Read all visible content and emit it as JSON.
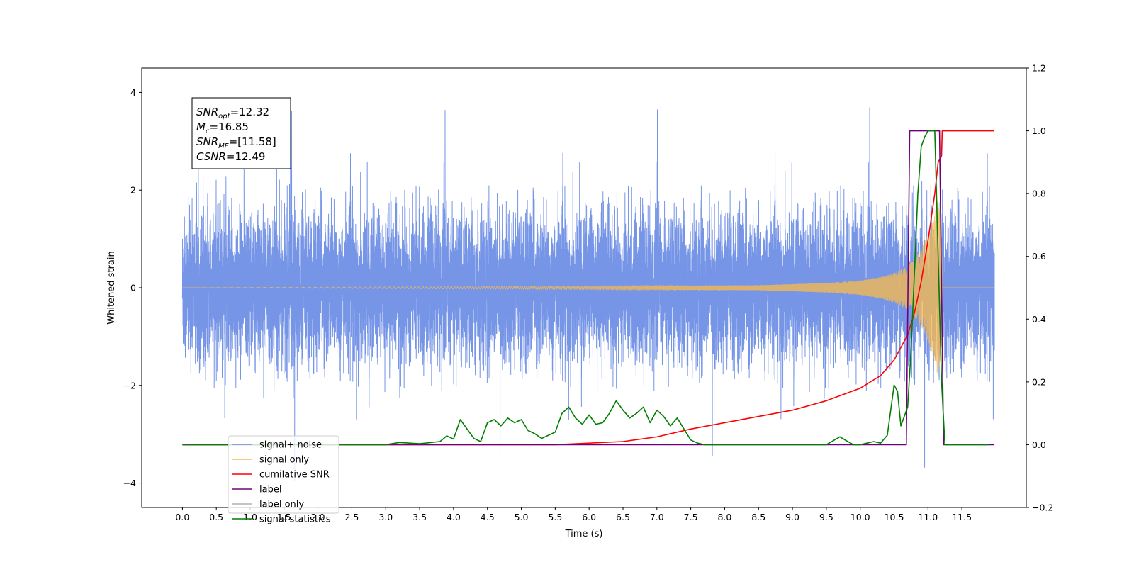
{
  "chart_data": {
    "type": "line",
    "xlabel": "Time (s)",
    "ylabel": "Whitened strain",
    "xlim": [
      -0.6,
      12.45
    ],
    "ylim": [
      -4.5,
      4.5
    ],
    "y2lim": [
      -0.2,
      1.2
    ],
    "xticks": [
      "0.0",
      "0.5",
      "1.0",
      "1.5",
      "2.0",
      "2.5",
      "3.0",
      "3.5",
      "4.0",
      "4.5",
      "5.0",
      "5.5",
      "6.0",
      "6.5",
      "7.0",
      "7.5",
      "8.0",
      "8.5",
      "9.0",
      "9.5",
      "10.0",
      "10.5",
      "11.0",
      "11.5"
    ],
    "yticks": [
      "−4",
      "−2",
      "0",
      "2",
      "4"
    ],
    "y2ticks": [
      "−0.2",
      "0.0",
      "0.2",
      "0.4",
      "0.6",
      "0.8",
      "1.0",
      "1.2"
    ],
    "legend_position": "lower-left",
    "annotation": [
      {
        "base": "SNR",
        "sub": "opt",
        "value": "=12.32"
      },
      {
        "base": "M",
        "sub": "c",
        "value": "=16.85"
      },
      {
        "base": "SNR",
        "sub": "MF",
        "value": "=[11.58]"
      },
      {
        "base": "CSNR",
        "sub": "",
        "value": "=12.49"
      }
    ],
    "series": [
      {
        "name": "signal+ noise",
        "color": "#6f8fe6",
        "axis": "left",
        "style": "noise band",
        "x_range": [
          0.0,
          11.98
        ],
        "typical_amplitude": 1.7,
        "peak_amplitude": 4.1
      },
      {
        "name": "signal only",
        "color": "#f2b955",
        "axis": "left",
        "style": "chirp",
        "envelope": {
          "x": [
            0.0,
            8.5,
            9.5,
            10.0,
            10.3,
            10.5,
            10.7,
            10.8,
            10.9,
            11.0,
            11.1,
            11.15,
            11.2,
            11.21,
            11.98
          ],
          "y": [
            0.0,
            0.05,
            0.1,
            0.15,
            0.22,
            0.3,
            0.45,
            0.6,
            0.8,
            1.1,
            1.5,
            1.85,
            1.2,
            0.0,
            0.0
          ]
        }
      },
      {
        "name": "cumilative SNR",
        "color": "#ff0000",
        "axis": "right",
        "x": [
          0.0,
          5.5,
          6.5,
          7.0,
          7.5,
          8.0,
          8.5,
          9.0,
          9.5,
          10.0,
          10.3,
          10.5,
          10.7,
          10.8,
          10.9,
          11.0,
          11.1,
          11.15,
          11.2,
          11.21,
          11.98
        ],
        "y": [
          0.0,
          0.0,
          0.01,
          0.025,
          0.05,
          0.07,
          0.09,
          0.11,
          0.14,
          0.18,
          0.22,
          0.27,
          0.35,
          0.42,
          0.52,
          0.65,
          0.8,
          0.9,
          0.92,
          1.0,
          1.0
        ]
      },
      {
        "name": "label",
        "color": "#72007a",
        "axis": "right",
        "x": [
          0.0,
          10.68,
          10.73,
          11.17,
          11.23,
          11.98
        ],
        "y": [
          0.0,
          0.0,
          1.0,
          1.0,
          0.0,
          0.0
        ]
      },
      {
        "name": "label only",
        "color": "#b0b0b0",
        "axis": "right",
        "hidden_behind_legend_entry": true
      },
      {
        "name": "signal statistics",
        "color": "#007f00",
        "axis": "right",
        "x": [
          0.0,
          3.0,
          3.2,
          3.5,
          3.8,
          3.9,
          4.0,
          4.1,
          4.2,
          4.3,
          4.4,
          4.5,
          4.6,
          4.7,
          4.8,
          4.9,
          5.0,
          5.1,
          5.2,
          5.3,
          5.4,
          5.5,
          5.6,
          5.7,
          5.8,
          5.9,
          6.0,
          6.1,
          6.2,
          6.3,
          6.4,
          6.5,
          6.6,
          6.7,
          6.8,
          6.9,
          7.0,
          7.1,
          7.2,
          7.3,
          7.4,
          7.5,
          7.6,
          7.7,
          9.5,
          9.7,
          9.8,
          9.9,
          10.0,
          10.1,
          10.2,
          10.3,
          10.4,
          10.5,
          10.55,
          10.6,
          10.65,
          10.7,
          10.75,
          10.8,
          10.85,
          10.9,
          10.95,
          11.0,
          11.1,
          11.15,
          11.2,
          11.25,
          11.9
        ],
        "y": [
          0.0,
          0.0,
          0.007,
          0.003,
          0.01,
          0.028,
          0.018,
          0.08,
          0.05,
          0.02,
          0.01,
          0.07,
          0.08,
          0.06,
          0.085,
          0.07,
          0.08,
          0.045,
          0.035,
          0.02,
          0.03,
          0.04,
          0.1,
          0.12,
          0.085,
          0.065,
          0.095,
          0.065,
          0.07,
          0.1,
          0.14,
          0.11,
          0.085,
          0.1,
          0.12,
          0.07,
          0.11,
          0.09,
          0.06,
          0.085,
          0.05,
          0.015,
          0.005,
          0.0,
          0.0,
          0.025,
          0.012,
          0.0,
          0.0,
          0.005,
          0.01,
          0.005,
          0.03,
          0.19,
          0.17,
          0.06,
          0.09,
          0.12,
          0.3,
          0.55,
          0.8,
          0.95,
          0.98,
          1.0,
          1.0,
          0.6,
          0.2,
          0.0,
          0.0
        ]
      }
    ]
  }
}
